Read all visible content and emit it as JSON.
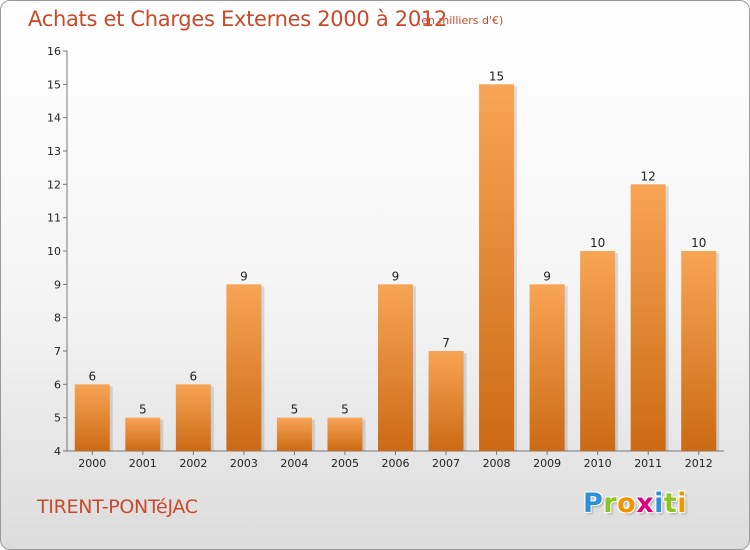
{
  "title": "Achats et Charges Externes 2000 à 2012",
  "unit_note": "(en milliers d'€)",
  "place_name": "TIRENT-PONTéJAC",
  "logo": {
    "letters": [
      "P",
      "r",
      "o",
      "x",
      "i",
      "t",
      "i"
    ],
    "colors": [
      "#2d8fd8",
      "#8fc31f",
      "#f29400",
      "#e2007a",
      "#2d8fd8",
      "#8fc31f",
      "#f29400"
    ]
  },
  "colors": {
    "bar_top": "#f7a555",
    "bar_bottom": "#cc6a14",
    "text_accent": "#c84a2a"
  },
  "chart_data": {
    "type": "bar",
    "title": "Achats et Charges Externes 2000 à 2012",
    "categories": [
      "2000",
      "2001",
      "2002",
      "2003",
      "2004",
      "2005",
      "2006",
      "2007",
      "2008",
      "2009",
      "2010",
      "2011",
      "2012"
    ],
    "values": [
      6,
      5,
      6,
      9,
      5,
      5,
      9,
      7,
      15,
      9,
      10,
      12,
      10
    ],
    "value_labels": [
      "6",
      "5",
      "6",
      "9",
      "5",
      "5",
      "9",
      "7",
      "15",
      "9",
      "10",
      "12",
      "10"
    ],
    "y_ticks": [
      "4",
      "5",
      "6",
      "7",
      "8",
      "9",
      "10",
      "11",
      "12",
      "13",
      "14",
      "15",
      "16"
    ],
    "ylim": [
      4,
      16
    ],
    "xlabel": "",
    "ylabel": "",
    "grid": false,
    "legend": "none"
  }
}
